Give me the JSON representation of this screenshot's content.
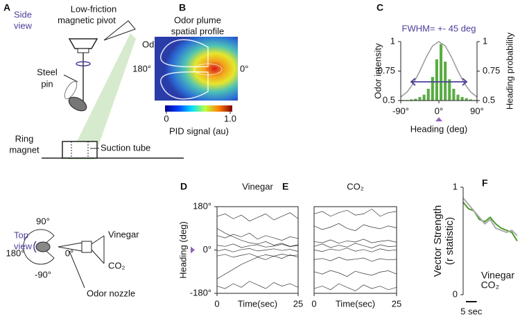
{
  "panel_a": {
    "letter": "A",
    "side_view": [
      "Side",
      "view"
    ],
    "pivot": [
      "Low-friction",
      "magnetic pivot"
    ],
    "odor_nozzle": "Odor nozzle",
    "steel_pin": [
      "Steel",
      "pin"
    ],
    "ring_magnet": [
      "Ring",
      "magnet"
    ],
    "suction_tube": "Suction tube",
    "top_view": [
      "Top",
      "view"
    ],
    "angles": [
      "90°",
      "180°",
      "0°",
      "-90°"
    ],
    "odors": [
      "Vinegar",
      "CO₂"
    ],
    "odor_nozzle_top": "Odor nozzle"
  },
  "panel_b": {
    "letter": "B",
    "title": [
      "Odor plume",
      "spatial profile"
    ],
    "left": "180°",
    "right": "0°",
    "colorbar": {
      "lim": [
        0,
        1
      ],
      "ticks": [
        0,
        {
          "value": 1,
          "label": "1.0"
        }
      ],
      "label": "PID signal (au)"
    }
  },
  "chart_data": [
    {
      "type": "histogram",
      "letter": "C",
      "annotation": "FWHM= +- 45 deg",
      "xlabel": "Heading (deg)",
      "ylabel": "Odor intensity",
      "y2label": "Heading probability",
      "xlim": [
        -90,
        90
      ],
      "xticks": [
        {
          "value": -90,
          "label": "-90°"
        },
        {
          "value": 0,
          "label": "0°"
        },
        {
          "value": 90,
          "label": "90°"
        }
      ],
      "ylim": [
        0.5,
        1
      ],
      "yticks": [
        0.5,
        0.75,
        1
      ],
      "y2lim": [
        0.5,
        1
      ],
      "y2ticks": [
        0.5,
        0.75,
        1
      ],
      "hist": {
        "axis": "y2",
        "color": "#5aac44",
        "bins": [
          -90,
          -80,
          -70,
          -60,
          -50,
          -40,
          -30,
          -20,
          -10,
          0,
          10,
          20,
          30,
          40,
          50,
          60,
          70,
          80,
          90
        ],
        "values": [
          0.505,
          0.505,
          0.51,
          0.515,
          0.53,
          0.55,
          0.6,
          0.7,
          0.85,
          0.98,
          0.83,
          0.68,
          0.6,
          0.55,
          0.53,
          0.52,
          0.51,
          0.505
        ]
      },
      "line": {
        "color": "#999999",
        "x": [
          -90,
          -75,
          -60,
          -45,
          -30,
          -15,
          0,
          15,
          30,
          45,
          60,
          75,
          90
        ],
        "values": [
          0.53,
          0.573,
          0.646,
          0.75,
          0.867,
          0.963,
          1,
          0.963,
          0.867,
          0.75,
          0.646,
          0.573,
          0.53
        ]
      }
    },
    {
      "type": "line",
      "letter": "D",
      "title": "Vinegar",
      "xlabel": "Time(sec)",
      "ylabel": "Heading (deg)",
      "color": "#000000",
      "xlim": [
        0,
        25
      ],
      "xticks": [
        0,
        25
      ],
      "ylim": [
        -180,
        180
      ],
      "yticks": [
        {
          "value": 180,
          "label": "180°"
        },
        {
          "value": 0,
          "label": "0°"
        },
        {
          "value": -180,
          "label": "-180°"
        }
      ],
      "x": [
        0,
        2.5,
        5,
        7.5,
        10,
        12.5,
        15,
        17.5,
        20,
        22.5,
        25
      ],
      "traces": [
        [
          -5,
          3,
          -8,
          2,
          6,
          -4,
          0,
          5,
          -2,
          3,
          -6
        ],
        [
          20,
          15,
          25,
          10,
          18,
          22,
          12,
          16,
          24,
          14,
          19
        ],
        [
          -25,
          -18,
          -30,
          -22,
          -15,
          -28,
          -20,
          -26,
          -17,
          -24,
          -21
        ],
        [
          90,
          70,
          55,
          40,
          30,
          25,
          35,
          20,
          28,
          15,
          22
        ],
        [
          -120,
          -100,
          -80,
          -60,
          -45,
          -30,
          -40,
          -25,
          -35,
          -20,
          -30
        ],
        [
          140,
          150,
          130,
          145,
          120,
          135,
          150,
          125,
          140,
          155,
          130
        ],
        [
          -150,
          -160,
          -140,
          -155,
          -130,
          -145,
          -160,
          -135,
          -150,
          -140,
          -155
        ],
        [
          60,
          50,
          65,
          55,
          70,
          45,
          60,
          50,
          40,
          55,
          48
        ]
      ]
    },
    {
      "type": "line",
      "letter": "E",
      "title": "CO₂",
      "xlabel": "Time(sec)",
      "color": "#000000",
      "xlim": [
        0,
        25
      ],
      "xticks": [
        0,
        25
      ],
      "ylim": [
        -180,
        180
      ],
      "x": [
        0,
        2.5,
        5,
        7.5,
        10,
        12.5,
        15,
        17.5,
        20,
        22.5,
        25
      ],
      "traces": [
        [
          0,
          -6,
          4,
          -2,
          8,
          -5,
          2,
          -8,
          5,
          -3,
          1
        ],
        [
          35,
          30,
          42,
          28,
          38,
          33,
          45,
          30,
          36,
          40,
          32
        ],
        [
          -40,
          -35,
          -45,
          -30,
          -42,
          -38,
          -33,
          -47,
          -36,
          -41,
          -39
        ],
        [
          100,
          85,
          95,
          110,
          90,
          80,
          105,
          95,
          88,
          100,
          92
        ],
        [
          -90,
          -100,
          -85,
          -95,
          -110,
          -88,
          -98,
          -105,
          -92,
          -86,
          -100
        ],
        [
          150,
          160,
          140,
          155,
          165,
          145,
          150,
          170,
          140,
          155,
          160
        ],
        [
          -160,
          -150,
          -165,
          -140,
          -155,
          -170,
          -145,
          -160,
          -150,
          -165,
          -155
        ],
        [
          15,
          25,
          10,
          20,
          12,
          28,
          18,
          8,
          22,
          14,
          16
        ]
      ]
    },
    {
      "type": "line",
      "letter": "F",
      "ylabel": [
        "Vector Strength",
        "(r statistic)"
      ],
      "xlim": [
        0,
        25
      ],
      "ylim": [
        0,
        1
      ],
      "yticks": [
        0,
        1
      ],
      "x": [
        0,
        2.5,
        5,
        7.5,
        10,
        12.5,
        15,
        17.5,
        20,
        22.5,
        25
      ],
      "series": [
        {
          "name": "Vinegar",
          "color": "#4a9a2a",
          "values": [
            0.86,
            0.8,
            0.78,
            0.7,
            0.68,
            0.72,
            0.66,
            0.62,
            0.6,
            0.58,
            0.5
          ]
        },
        {
          "name": "CO₂",
          "color": "#aaaaaa",
          "values": [
            0.9,
            0.84,
            0.78,
            0.72,
            0.66,
            0.7,
            0.62,
            0.6,
            0.58,
            0.6,
            0.55
          ]
        }
      ],
      "scalebar": {
        "value": 5,
        "label": "5 sec"
      }
    }
  ]
}
